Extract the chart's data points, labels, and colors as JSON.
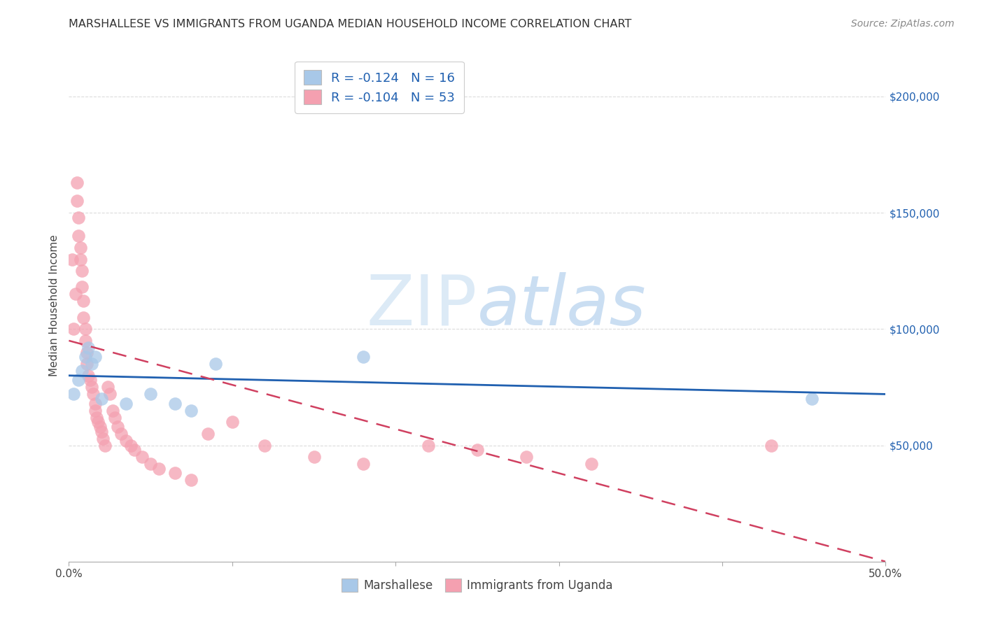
{
  "title": "MARSHALLESE VS IMMIGRANTS FROM UGANDA MEDIAN HOUSEHOLD INCOME CORRELATION CHART",
  "source": "Source: ZipAtlas.com",
  "ylabel": "Median Household Income",
  "xlim": [
    0.0,
    0.5
  ],
  "ylim": [
    0,
    220000
  ],
  "yticks": [
    0,
    50000,
    100000,
    150000,
    200000
  ],
  "right_ytick_labels": [
    "",
    "$50,000",
    "$100,000",
    "$150,000",
    "$200,000"
  ],
  "xticks": [
    0.0,
    0.1,
    0.2,
    0.3,
    0.4,
    0.5
  ],
  "xtick_labels": [
    "0.0%",
    "",
    "",
    "",
    "",
    "50.0%"
  ],
  "blue_color": "#a8c8e8",
  "pink_color": "#f4a0b0",
  "blue_line_color": "#2060b0",
  "pink_line_color": "#d04060",
  "grid_color": "#cccccc",
  "background_color": "#ffffff",
  "watermark_zip": "ZIP",
  "watermark_atlas": "atlas",
  "blue_trend_x0": 0.0,
  "blue_trend_y0": 80000,
  "blue_trend_x1": 0.5,
  "blue_trend_y1": 72000,
  "pink_trend_x0": 0.0,
  "pink_trend_y0": 95000,
  "pink_trend_x1": 0.5,
  "pink_trend_y1": 0,
  "marsh_x": [
    0.003,
    0.006,
    0.008,
    0.01,
    0.012,
    0.014,
    0.016,
    0.02,
    0.035,
    0.05,
    0.065,
    0.075,
    0.09,
    0.18,
    0.455
  ],
  "marsh_y": [
    72000,
    78000,
    82000,
    88000,
    92000,
    85000,
    88000,
    70000,
    68000,
    72000,
    68000,
    65000,
    85000,
    88000,
    70000
  ],
  "ug_x": [
    0.002,
    0.003,
    0.004,
    0.005,
    0.005,
    0.006,
    0.006,
    0.007,
    0.007,
    0.008,
    0.008,
    0.009,
    0.009,
    0.01,
    0.01,
    0.011,
    0.011,
    0.012,
    0.013,
    0.014,
    0.015,
    0.016,
    0.016,
    0.017,
    0.018,
    0.019,
    0.02,
    0.021,
    0.022,
    0.024,
    0.025,
    0.027,
    0.028,
    0.03,
    0.032,
    0.035,
    0.038,
    0.04,
    0.045,
    0.05,
    0.055,
    0.065,
    0.075,
    0.085,
    0.1,
    0.12,
    0.15,
    0.18,
    0.22,
    0.25,
    0.28,
    0.32,
    0.43
  ],
  "ug_y": [
    130000,
    100000,
    115000,
    163000,
    155000,
    148000,
    140000,
    135000,
    130000,
    125000,
    118000,
    112000,
    105000,
    100000,
    95000,
    90000,
    85000,
    80000,
    78000,
    75000,
    72000,
    68000,
    65000,
    62000,
    60000,
    58000,
    56000,
    53000,
    50000,
    75000,
    72000,
    65000,
    62000,
    58000,
    55000,
    52000,
    50000,
    48000,
    45000,
    42000,
    40000,
    38000,
    35000,
    55000,
    60000,
    50000,
    45000,
    42000,
    50000,
    48000,
    45000,
    42000,
    50000
  ]
}
